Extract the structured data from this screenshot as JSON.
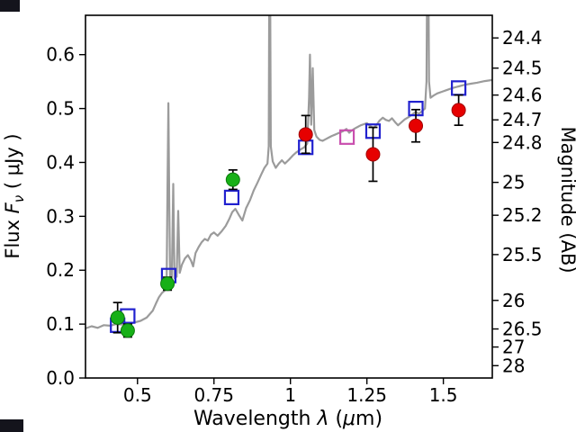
{
  "figure": {
    "xlabel_pre": "Wavelength ",
    "xlabel_lambda": "λ",
    "xlabel_mid": " (",
    "xlabel_mu": "μ",
    "xlabel_post": "m)",
    "ylabel_left_pre": "Flux ",
    "ylabel_left_sym": "F",
    "ylabel_left_sub": "ν",
    "ylabel_left_post": " ( μJy )",
    "ylabel_right": "Magnitude (AB)",
    "frame_color": "#000000",
    "artifact_color": "#14141c"
  },
  "chart_data": {
    "type": "line",
    "title": "",
    "xlabel": "Wavelength λ (μm)",
    "ylabel_left": "Flux Fν (μJy)",
    "ylabel_right": "Magnitude (AB)",
    "grid": false,
    "legend": "none",
    "xlim": [
      0.33,
      1.66
    ],
    "ylim_flux": [
      0.0,
      0.673
    ],
    "xticks": {
      "values": [
        0.5,
        0.75,
        1.0,
        1.25,
        1.5
      ],
      "labels": [
        "0.5",
        "0.75",
        "1",
        "1.25",
        "1.5"
      ]
    },
    "yticks_left": {
      "values": [
        0.0,
        0.1,
        0.2,
        0.3,
        0.4,
        0.5,
        0.6
      ],
      "labels": [
        "0.0",
        "0.1",
        "0.2",
        "0.3",
        "0.4",
        "0.5",
        "0.6"
      ]
    },
    "yticks_right": {
      "labels": [
        "24.4",
        "24.5",
        "24.6",
        "24.7",
        "24.8",
        "25",
        "25.2",
        "25.5",
        "26",
        "26.5",
        "27",
        "28"
      ],
      "flux_positions": [
        0.631,
        0.575,
        0.525,
        0.479,
        0.437,
        0.363,
        0.302,
        0.229,
        0.144,
        0.091,
        0.0575,
        0.0229
      ]
    },
    "spectrum": {
      "name": "model-spectrum",
      "color": "#9b9b9b",
      "points": [
        [
          0.33,
          0.092
        ],
        [
          0.35,
          0.096
        ],
        [
          0.37,
          0.093
        ],
        [
          0.39,
          0.098
        ],
        [
          0.41,
          0.097
        ],
        [
          0.43,
          0.1
        ],
        [
          0.45,
          0.099
        ],
        [
          0.47,
          0.101
        ],
        [
          0.49,
          0.103
        ],
        [
          0.51,
          0.106
        ],
        [
          0.53,
          0.112
        ],
        [
          0.55,
          0.125
        ],
        [
          0.56,
          0.138
        ],
        [
          0.57,
          0.15
        ],
        [
          0.58,
          0.158
        ],
        [
          0.59,
          0.163
        ],
        [
          0.595,
          0.168
        ],
        [
          0.598,
          0.35
        ],
        [
          0.601,
          0.51
        ],
        [
          0.604,
          0.32
        ],
        [
          0.607,
          0.175
        ],
        [
          0.612,
          0.178
        ],
        [
          0.617,
          0.36
        ],
        [
          0.621,
          0.185
        ],
        [
          0.628,
          0.188
        ],
        [
          0.633,
          0.31
        ],
        [
          0.638,
          0.195
        ],
        [
          0.645,
          0.21
        ],
        [
          0.655,
          0.222
        ],
        [
          0.665,
          0.228
        ],
        [
          0.675,
          0.218
        ],
        [
          0.682,
          0.207
        ],
        [
          0.69,
          0.232
        ],
        [
          0.7,
          0.243
        ],
        [
          0.71,
          0.252
        ],
        [
          0.72,
          0.258
        ],
        [
          0.73,
          0.255
        ],
        [
          0.74,
          0.266
        ],
        [
          0.75,
          0.27
        ],
        [
          0.762,
          0.264
        ],
        [
          0.775,
          0.272
        ],
        [
          0.788,
          0.282
        ],
        [
          0.8,
          0.295
        ],
        [
          0.81,
          0.308
        ],
        [
          0.82,
          0.314
        ],
        [
          0.832,
          0.302
        ],
        [
          0.843,
          0.292
        ],
        [
          0.855,
          0.315
        ],
        [
          0.868,
          0.33
        ],
        [
          0.88,
          0.348
        ],
        [
          0.892,
          0.362
        ],
        [
          0.905,
          0.378
        ],
        [
          0.915,
          0.39
        ],
        [
          0.925,
          0.398
        ],
        [
          0.929,
          0.43
        ],
        [
          0.932,
          0.95
        ],
        [
          0.936,
          0.43
        ],
        [
          0.942,
          0.402
        ],
        [
          0.952,
          0.39
        ],
        [
          0.962,
          0.398
        ],
        [
          0.972,
          0.404
        ],
        [
          0.982,
          0.398
        ],
        [
          0.995,
          0.405
        ],
        [
          1.008,
          0.413
        ],
        [
          1.02,
          0.419
        ],
        [
          1.033,
          0.424
        ],
        [
          1.045,
          0.428
        ],
        [
          1.055,
          0.435
        ],
        [
          1.061,
          0.52
        ],
        [
          1.064,
          0.6
        ],
        [
          1.068,
          0.47
        ],
        [
          1.073,
          0.575
        ],
        [
          1.078,
          0.46
        ],
        [
          1.085,
          0.448
        ],
        [
          1.095,
          0.442
        ],
        [
          1.105,
          0.44
        ],
        [
          1.115,
          0.443
        ],
        [
          1.125,
          0.446
        ],
        [
          1.135,
          0.449
        ],
        [
          1.148,
          0.452
        ],
        [
          1.16,
          0.455
        ],
        [
          1.172,
          0.458
        ],
        [
          1.183,
          0.462
        ],
        [
          1.192,
          0.455
        ],
        [
          1.2,
          0.459
        ],
        [
          1.21,
          0.463
        ],
        [
          1.22,
          0.466
        ],
        [
          1.23,
          0.469
        ],
        [
          1.24,
          0.471
        ],
        [
          1.25,
          0.473
        ],
        [
          1.262,
          0.467
        ],
        [
          1.272,
          0.464
        ],
        [
          1.282,
          0.47
        ],
        [
          1.292,
          0.478
        ],
        [
          1.302,
          0.483
        ],
        [
          1.312,
          0.479
        ],
        [
          1.322,
          0.477
        ],
        [
          1.332,
          0.482
        ],
        [
          1.342,
          0.475
        ],
        [
          1.352,
          0.469
        ],
        [
          1.362,
          0.474
        ],
        [
          1.374,
          0.48
        ],
        [
          1.386,
          0.484
        ],
        [
          1.398,
          0.489
        ],
        [
          1.41,
          0.494
        ],
        [
          1.42,
          0.49
        ],
        [
          1.43,
          0.495
        ],
        [
          1.44,
          0.5
        ],
        [
          1.445,
          0.55
        ],
        [
          1.449,
          0.95
        ],
        [
          1.453,
          0.55
        ],
        [
          1.458,
          0.52
        ],
        [
          1.468,
          0.524
        ],
        [
          1.48,
          0.528
        ],
        [
          1.495,
          0.531
        ],
        [
          1.51,
          0.534
        ],
        [
          1.53,
          0.538
        ],
        [
          1.55,
          0.541
        ],
        [
          1.57,
          0.544
        ],
        [
          1.59,
          0.546
        ],
        [
          1.61,
          0.548
        ],
        [
          1.635,
          0.551
        ],
        [
          1.66,
          0.553
        ]
      ]
    },
    "scatter_series": [
      {
        "name": "model-photometry-square",
        "marker": "square",
        "color": "#2121cf",
        "points": [
          [
            0.435,
            0.098
          ],
          [
            0.468,
            0.115
          ],
          [
            0.602,
            0.19
          ],
          [
            0.808,
            0.335
          ],
          [
            1.05,
            0.428
          ],
          [
            1.27,
            0.458
          ],
          [
            1.41,
            0.5
          ],
          [
            1.55,
            0.538
          ]
        ]
      },
      {
        "name": "observed-green",
        "marker": "circle",
        "color": "#17b017",
        "edge": "#0c7a0c",
        "points": [
          [
            0.435,
            0.112
          ],
          [
            0.468,
            0.088
          ],
          [
            0.598,
            0.175
          ],
          [
            0.812,
            0.368
          ]
        ],
        "yerr": [
          0.028,
          0.012,
          0.012,
          0.018
        ]
      },
      {
        "name": "observed-red",
        "marker": "circle",
        "color": "#e60000",
        "edge": "#a00000",
        "points": [
          [
            1.05,
            0.452
          ],
          [
            1.27,
            0.415
          ],
          [
            1.41,
            0.468
          ],
          [
            1.55,
            0.497
          ]
        ],
        "yerr": [
          0.035,
          0.05,
          0.03,
          0.028
        ]
      },
      {
        "name": "extra-photometry-square",
        "marker": "square",
        "color": "#c94fae",
        "points": [
          [
            1.185,
            0.447
          ]
        ]
      }
    ]
  }
}
